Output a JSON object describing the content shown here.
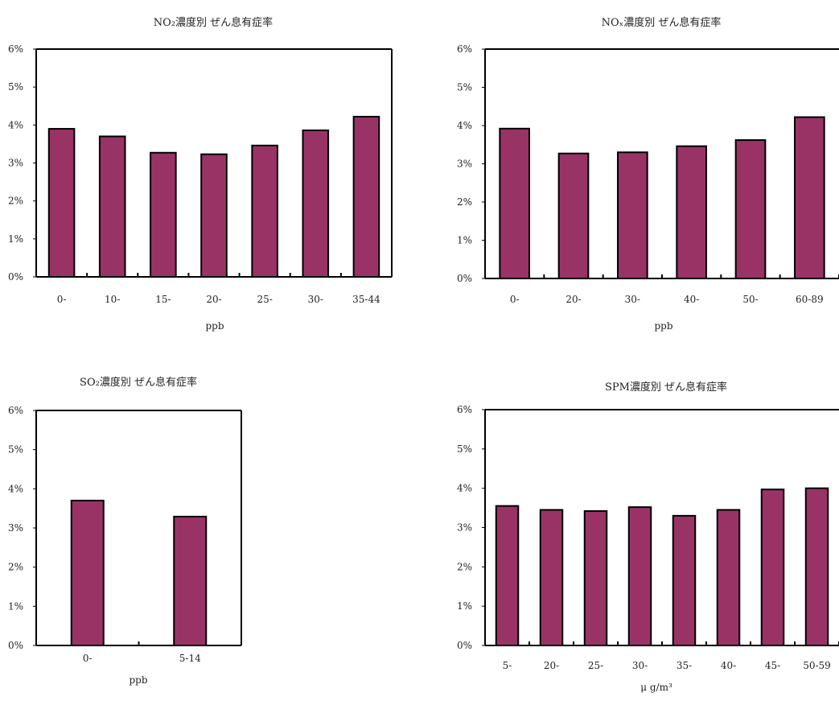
{
  "colors": {
    "bar": "#993366",
    "stroke": "#000000"
  },
  "charts": [
    {
      "title": "NO₂濃度別 ぜん息有症率",
      "xlabel": "ppb"
    },
    {
      "title": "NOₓ濃度別 ぜん息有症率",
      "xlabel": "ppb"
    },
    {
      "title": "SO₂濃度別 ぜん息有症率",
      "xlabel": "ppb"
    },
    {
      "title": "SPM濃度別 ぜん息有症率",
      "xlabel": "μ g/m³"
    }
  ],
  "chart_data": [
    {
      "type": "bar",
      "title": "NO₂濃度別 ぜん息有症率",
      "xlabel": "ppb",
      "ylabel": "",
      "categories": [
        "0-",
        "10-",
        "15-",
        "20-",
        "25-",
        "30-",
        "35-44"
      ],
      "values": [
        3.9,
        3.7,
        3.27,
        3.23,
        3.46,
        3.86,
        4.22
      ],
      "ylim": [
        0,
        6
      ],
      "yticks": [
        "0%",
        "1%",
        "2%",
        "3%",
        "4%",
        "5%",
        "6%"
      ],
      "grid": false
    },
    {
      "type": "bar",
      "title": "NOₓ濃度別 ぜん息有症率",
      "xlabel": "ppb",
      "ylabel": "",
      "categories": [
        "0-",
        "20-",
        "30-",
        "40-",
        "50-",
        "60-89"
      ],
      "values": [
        3.92,
        3.27,
        3.3,
        3.46,
        3.62,
        4.22
      ],
      "ylim": [
        0,
        6
      ],
      "yticks": [
        "0%",
        "1%",
        "2%",
        "3%",
        "4%",
        "5%",
        "6%"
      ],
      "grid": false
    },
    {
      "type": "bar",
      "title": "SO₂濃度別 ぜん息有症率",
      "xlabel": "ppb",
      "ylabel": "",
      "categories": [
        "0-",
        "5-14"
      ],
      "values": [
        3.7,
        3.29
      ],
      "ylim": [
        0,
        6
      ],
      "yticks": [
        "0%",
        "1%",
        "2%",
        "3%",
        "4%",
        "5%",
        "6%"
      ],
      "grid": false
    },
    {
      "type": "bar",
      "title": "SPM濃度別 ぜん息有症率",
      "xlabel": "μ g/m³",
      "ylabel": "",
      "categories": [
        "5-",
        "20-",
        "25-",
        "30-",
        "35-",
        "40-",
        "45-",
        "50-59"
      ],
      "values": [
        3.55,
        3.45,
        3.42,
        3.52,
        3.3,
        3.45,
        3.97,
        4.0
      ],
      "ylim": [
        0,
        6
      ],
      "yticks": [
        "0%",
        "1%",
        "2%",
        "3%",
        "4%",
        "5%",
        "6%"
      ],
      "grid": false
    }
  ]
}
